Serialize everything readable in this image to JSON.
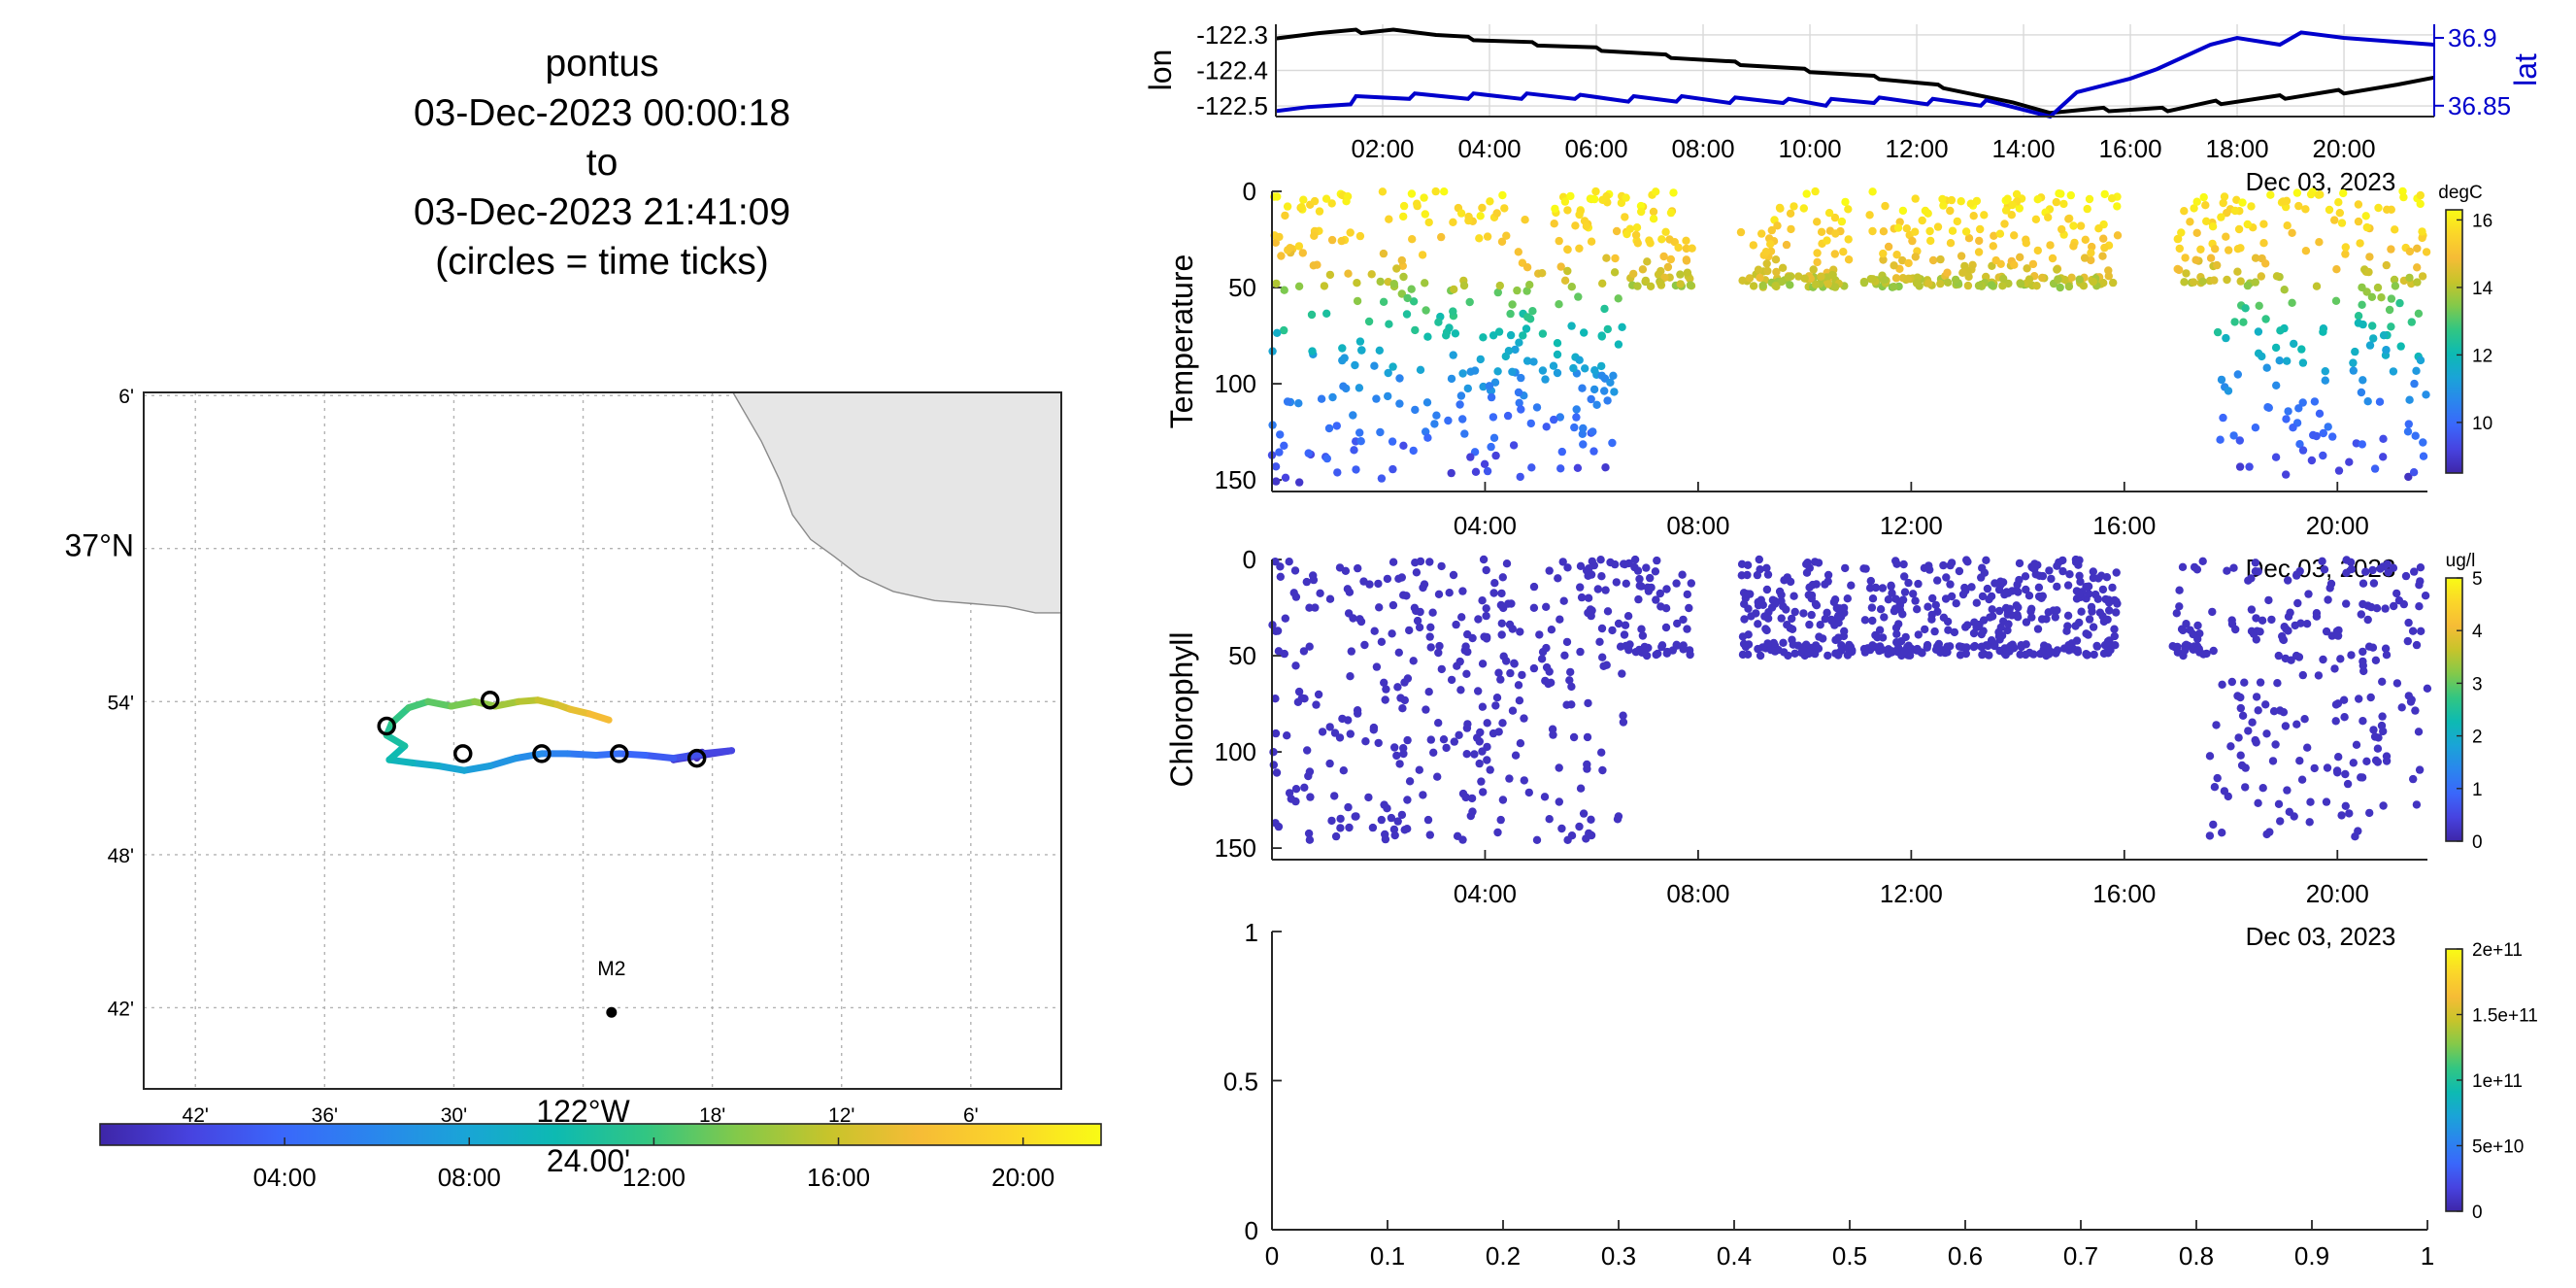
{
  "title": {
    "lines": [
      "pontus",
      "03-Dec-2023 00:00:18",
      "to",
      "03-Dec-2023 21:41:09",
      "(circles = time ticks)"
    ]
  },
  "colors": {
    "nav_lon": "#000000",
    "nav_lat": "#0000cc",
    "land": "#e6e6e6",
    "land_edge": "#8a8a8a",
    "colormap": [
      "#3e26a8",
      "#4743e0",
      "#3a67fb",
      "#2a86ed",
      "#1aa4d7",
      "#0dbab2",
      "#32c682",
      "#83c94a",
      "#c7c42b",
      "#f6bc36",
      "#fbd629",
      "#f9fb15"
    ]
  },
  "map": {
    "lat_ticks": [
      {
        "lat": 37.1,
        "label": "6'"
      },
      {
        "lat": 37.0,
        "label": "37°N",
        "major": true
      },
      {
        "lat": 36.9,
        "label": "54'"
      },
      {
        "lat": 36.8,
        "label": "48'"
      },
      {
        "lat": 36.7,
        "label": "42'"
      }
    ],
    "lon_ticks": [
      {
        "lon": -122.7,
        "label": "42'"
      },
      {
        "lon": -122.6,
        "label": "36'"
      },
      {
        "lon": -122.5,
        "label": "30'"
      },
      {
        "lon": -122.4,
        "label": "122°W",
        "major": true
      },
      {
        "lon": -122.3,
        "label": "18'"
      },
      {
        "lon": -122.2,
        "label": "12'"
      },
      {
        "lon": -122.1,
        "label": "6'"
      }
    ],
    "lon_range": [
      -122.74,
      -122.03
    ],
    "lat_range": [
      36.647,
      37.102
    ],
    "mooring": {
      "name": "M2",
      "lon": -122.378,
      "lat": 36.697
    },
    "coast": [
      [
        -122.284,
        37.102
      ],
      [
        -122.262,
        37.07
      ],
      [
        -122.248,
        37.045
      ],
      [
        -122.238,
        37.022
      ],
      [
        -122.224,
        37.006
      ],
      [
        -122.206,
        36.995
      ],
      [
        -122.186,
        36.982
      ],
      [
        -122.16,
        36.972
      ],
      [
        -122.128,
        36.966
      ],
      [
        -122.098,
        36.964
      ],
      [
        -122.072,
        36.962
      ],
      [
        -122.05,
        36.958
      ],
      [
        -122.03,
        36.958
      ]
    ],
    "track": [
      {
        "t": 0.0,
        "lon": -122.312,
        "lat": 36.863
      },
      {
        "t": 0.6,
        "lon": -122.308,
        "lat": 36.867
      },
      {
        "t": 1.2,
        "lon": -122.33,
        "lat": 36.862
      },
      {
        "t": 1.8,
        "lon": -122.285,
        "lat": 36.868
      },
      {
        "t": 2.4,
        "lon": -122.308,
        "lat": 36.866
      },
      {
        "t": 3.0,
        "lon": -122.33,
        "lat": 36.863
      },
      {
        "t": 3.6,
        "lon": -122.352,
        "lat": 36.865
      },
      {
        "t": 4.2,
        "lon": -122.372,
        "lat": 36.866
      },
      {
        "t": 4.8,
        "lon": -122.39,
        "lat": 36.865
      },
      {
        "t": 5.4,
        "lon": -122.412,
        "lat": 36.866
      },
      {
        "t": 6.0,
        "lon": -122.432,
        "lat": 36.866
      },
      {
        "t": 6.6,
        "lon": -122.452,
        "lat": 36.863
      },
      {
        "t": 7.2,
        "lon": -122.472,
        "lat": 36.858
      },
      {
        "t": 7.8,
        "lon": -122.492,
        "lat": 36.855
      },
      {
        "t": 8.4,
        "lon": -122.512,
        "lat": 36.858
      },
      {
        "t": 9.0,
        "lon": -122.532,
        "lat": 36.86
      },
      {
        "t": 9.6,
        "lon": -122.55,
        "lat": 36.862
      },
      {
        "t": 10.2,
        "lon": -122.538,
        "lat": 36.871
      },
      {
        "t": 10.8,
        "lon": -122.552,
        "lat": 36.878
      },
      {
        "t": 11.4,
        "lon": -122.548,
        "lat": 36.886
      },
      {
        "t": 12.0,
        "lon": -122.535,
        "lat": 36.896
      },
      {
        "t": 12.6,
        "lon": -122.52,
        "lat": 36.9
      },
      {
        "t": 13.2,
        "lon": -122.502,
        "lat": 36.897
      },
      {
        "t": 13.8,
        "lon": -122.484,
        "lat": 36.9
      },
      {
        "t": 14.4,
        "lon": -122.468,
        "lat": 36.897
      },
      {
        "t": 15.0,
        "lon": -122.45,
        "lat": 36.9
      },
      {
        "t": 15.6,
        "lon": -122.435,
        "lat": 36.901
      },
      {
        "t": 16.2,
        "lon": -122.42,
        "lat": 36.898
      },
      {
        "t": 16.8,
        "lon": -122.41,
        "lat": 36.895
      },
      {
        "t": 17.4,
        "lon": -122.395,
        "lat": 36.892
      },
      {
        "t": 18.0,
        "lon": -122.38,
        "lat": 36.888
      }
    ],
    "time_circles": [
      {
        "lon": -122.312,
        "lat": 36.863
      },
      {
        "lon": -122.432,
        "lat": 36.866
      },
      {
        "lon": -122.493,
        "lat": 36.866
      },
      {
        "lon": -122.552,
        "lat": 36.884
      },
      {
        "lon": -122.472,
        "lat": 36.901
      },
      {
        "lon": -122.372,
        "lat": 36.866
      }
    ],
    "colorbar": {
      "ticks": [
        {
          "t": 4,
          "label": "04:00"
        },
        {
          "t": 8,
          "label": "08:00"
        },
        {
          "t": 12,
          "label": "12:00"
        },
        {
          "t": 16,
          "label": "16:00"
        },
        {
          "t": 20,
          "label": "20:00"
        }
      ],
      "t_range": [
        0,
        21.69
      ],
      "extra_label": "24.00'"
    }
  },
  "chart_data": [
    {
      "type": "line",
      "panel": "navigation",
      "x_unit": "hours since 03-Dec-2023 00:00",
      "xlim": [
        0.0,
        21.69
      ],
      "x_tick_labels": [
        {
          "t": 2,
          "label": "02:00"
        },
        {
          "t": 4,
          "label": "04:00"
        },
        {
          "t": 6,
          "label": "06:00"
        },
        {
          "t": 8,
          "label": "08:00"
        },
        {
          "t": 10,
          "label": "10:00"
        },
        {
          "t": 12,
          "label": "12:00"
        },
        {
          "t": 14,
          "label": "14:00"
        },
        {
          "t": 16,
          "label": "16:00"
        },
        {
          "t": 18,
          "label": "18:00"
        },
        {
          "t": 20,
          "label": "20:00"
        }
      ],
      "date_label": "Dec 03, 2023",
      "ylabel_left": "lon",
      "ylim_left": [
        -122.53,
        -122.27
      ],
      "yticks_left": [
        {
          "v": -122.3,
          "label": "-122.3"
        },
        {
          "v": -122.4,
          "label": "-122.4"
        },
        {
          "v": -122.5,
          "label": "-122.5"
        }
      ],
      "ylabel_right": "lat",
      "ylim_right": [
        36.842,
        36.91
      ],
      "yticks_right": [
        {
          "v": 36.9,
          "label": "36.9"
        },
        {
          "v": 36.85,
          "label": "36.85"
        }
      ],
      "series": [
        {
          "axis": "left",
          "color": "#000000",
          "x": [
            0.0,
            0.8,
            1.5,
            1.6,
            2.2,
            3.0,
            3.6,
            3.7,
            4.8,
            4.9,
            6.0,
            6.1,
            7.3,
            7.4,
            8.6,
            8.7,
            9.9,
            10.0,
            11.2,
            11.3,
            12.4,
            12.5,
            13.8,
            14.5,
            15.5,
            15.6,
            16.6,
            16.7,
            17.6,
            17.7,
            18.8,
            18.9,
            19.9,
            20.0,
            21.0,
            21.69
          ],
          "y": [
            -122.31,
            -122.295,
            -122.285,
            -122.295,
            -122.285,
            -122.3,
            -122.305,
            -122.315,
            -122.32,
            -122.33,
            -122.335,
            -122.345,
            -122.355,
            -122.365,
            -122.375,
            -122.385,
            -122.395,
            -122.405,
            -122.415,
            -122.425,
            -122.44,
            -122.45,
            -122.49,
            -122.52,
            -122.505,
            -122.515,
            -122.505,
            -122.515,
            -122.485,
            -122.495,
            -122.47,
            -122.48,
            -122.455,
            -122.465,
            -122.44,
            -122.42
          ]
        },
        {
          "axis": "right",
          "color": "#0000cc",
          "x": [
            0.0,
            0.6,
            1.4,
            1.5,
            2.5,
            2.6,
            3.6,
            3.7,
            4.6,
            4.7,
            5.6,
            5.7,
            6.6,
            6.7,
            7.5,
            7.6,
            8.5,
            8.6,
            9.5,
            9.6,
            10.3,
            10.4,
            11.2,
            11.3,
            12.2,
            12.3,
            13.2,
            13.3,
            14.5,
            15.0,
            16.0,
            16.5,
            17.5,
            18.0,
            18.8,
            19.2,
            20.0,
            21.69
          ],
          "y": [
            36.846,
            36.849,
            36.851,
            36.857,
            36.855,
            36.859,
            36.855,
            36.859,
            36.855,
            36.859,
            36.855,
            36.858,
            36.853,
            36.857,
            36.853,
            36.857,
            36.852,
            36.856,
            36.852,
            36.855,
            36.85,
            36.855,
            36.852,
            36.856,
            36.851,
            36.855,
            36.85,
            36.854,
            36.842,
            36.86,
            36.87,
            36.877,
            36.895,
            36.9,
            36.895,
            36.904,
            36.9,
            36.895
          ]
        }
      ]
    },
    {
      "type": "scatter",
      "panel": "temperature",
      "ylabel": "Temperature",
      "ylim": [
        156,
        0
      ],
      "yticks": [
        0,
        50,
        100,
        150
      ],
      "xlim": [
        0.0,
        21.69
      ],
      "x_tick_labels": [
        {
          "t": 4,
          "label": "04:00"
        },
        {
          "t": 8,
          "label": "08:00"
        },
        {
          "t": 12,
          "label": "12:00"
        },
        {
          "t": 16,
          "label": "16:00"
        },
        {
          "t": 20,
          "label": "20:00"
        }
      ],
      "date_label": "Dec 03, 2023",
      "colorbar": {
        "label": "degC",
        "range": [
          8.5,
          16.3
        ],
        "ticks": [
          10,
          12,
          14,
          16
        ]
      },
      "segments": [
        {
          "t_start": 0.0,
          "t_end": 6.6,
          "depth_max": 152,
          "profile": "deep"
        },
        {
          "t_start": 6.6,
          "t_end": 7.9,
          "depth_max": 50,
          "profile": "shallow"
        },
        {
          "t_start": 8.8,
          "t_end": 10.9,
          "depth_max": 50,
          "profile": "shallow"
        },
        {
          "t_start": 11.1,
          "t_end": 15.9,
          "depth_max": 50,
          "profile": "shallow"
        },
        {
          "t_start": 17.0,
          "t_end": 17.7,
          "depth_max": 50,
          "profile": "shallow"
        },
        {
          "t_start": 17.7,
          "t_end": 21.69,
          "depth_max": 150,
          "profile": "deep"
        }
      ],
      "temperature_vs_depth": {
        "depth": [
          0,
          30,
          45,
          60,
          80,
          100,
          130,
          150
        ],
        "temp": [
          16.2,
          15.2,
          14.3,
          12.8,
          11.8,
          10.8,
          9.8,
          9.2
        ]
      }
    },
    {
      "type": "scatter",
      "panel": "chlorophyll",
      "ylabel": "Chlorophyll",
      "ylim": [
        156,
        0
      ],
      "yticks": [
        0,
        50,
        100,
        150
      ],
      "xlim": [
        0.0,
        21.69
      ],
      "x_tick_labels": [
        {
          "t": 4,
          "label": "04:00"
        },
        {
          "t": 8,
          "label": "08:00"
        },
        {
          "t": 12,
          "label": "12:00"
        },
        {
          "t": 16,
          "label": "16:00"
        },
        {
          "t": 20,
          "label": "20:00"
        }
      ],
      "date_label": "Dec 03, 2023",
      "colorbar": {
        "label": "ug/l",
        "range": [
          0,
          5
        ],
        "ticks": [
          0,
          1,
          2,
          3,
          4,
          5
        ]
      },
      "value_shown": 0.2,
      "segments": [
        {
          "t_start": 0.0,
          "t_end": 6.6,
          "depth_max": 146,
          "density": "sparse"
        },
        {
          "t_start": 6.6,
          "t_end": 7.9,
          "depth_max": 50,
          "density": "sparse"
        },
        {
          "t_start": 8.8,
          "t_end": 10.9,
          "depth_max": 50,
          "density": "dense"
        },
        {
          "t_start": 11.1,
          "t_end": 15.9,
          "depth_max": 50,
          "density": "dense"
        },
        {
          "t_start": 16.9,
          "t_end": 17.6,
          "depth_max": 50,
          "density": "sparse"
        },
        {
          "t_start": 17.6,
          "t_end": 21.69,
          "depth_max": 144,
          "density": "sparse"
        }
      ]
    },
    {
      "type": "scatter",
      "panel": "empty",
      "xlim": [
        0,
        1
      ],
      "ylim": [
        0,
        1
      ],
      "xticks": [
        {
          "v": 0,
          "label": "0"
        },
        {
          "v": 0.1,
          "label": "0.1"
        },
        {
          "v": 0.2,
          "label": "0.2"
        },
        {
          "v": 0.3,
          "label": "0.3"
        },
        {
          "v": 0.4,
          "label": "0.4"
        },
        {
          "v": 0.5,
          "label": "0.5"
        },
        {
          "v": 0.6,
          "label": "0.6"
        },
        {
          "v": 0.7,
          "label": "0.7"
        },
        {
          "v": 0.8,
          "label": "0.8"
        },
        {
          "v": 0.9,
          "label": "0.9"
        },
        {
          "v": 1,
          "label": "1"
        }
      ],
      "yticks": [
        {
          "v": 0,
          "label": "0"
        },
        {
          "v": 0.5,
          "label": "0.5"
        },
        {
          "v": 1,
          "label": "1"
        }
      ],
      "colorbar": {
        "range": [
          0,
          200000000000.0
        ],
        "ticks": [
          {
            "v": 0,
            "label": "0"
          },
          {
            "v": 50000000000.0,
            "label": "5e+10"
          },
          {
            "v": 100000000000.0,
            "label": "1e+11"
          },
          {
            "v": 150000000000.0,
            "label": "1.5e+11"
          },
          {
            "v": 200000000000.0,
            "label": "2e+11"
          }
        ]
      }
    }
  ]
}
